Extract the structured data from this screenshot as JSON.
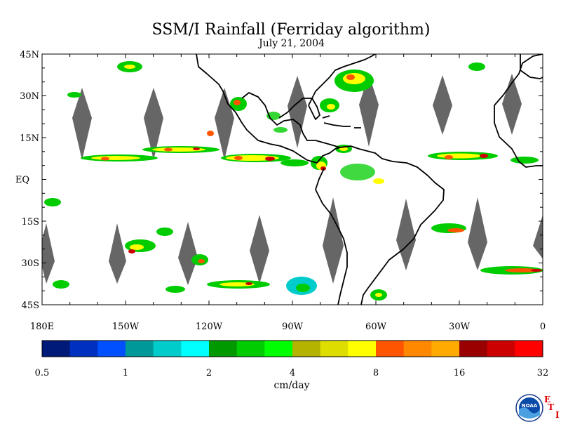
{
  "title": "SSM/I Rainfall (Ferriday algorithm)",
  "date": "July 21, 2004",
  "map": {
    "lon_range": [
      -180,
      0
    ],
    "lat_range": [
      -45,
      45
    ],
    "lat_labels": [
      "45N",
      "30N",
      "15N",
      "EQ",
      "15S",
      "30S",
      "45S"
    ],
    "lon_labels": [
      "180E",
      "150W",
      "120W",
      "90W",
      "60W",
      "30W",
      "0"
    ],
    "no_data_color": "#666666",
    "coastline_color": "#000000"
  },
  "colorbar": {
    "tick_labels": [
      "0.5",
      "1",
      "2",
      "4",
      "8",
      "16",
      "32"
    ],
    "units": "cm/day",
    "colors": [
      "#001a7a",
      "#0030c0",
      "#0050ff",
      "#009999",
      "#00cccc",
      "#00ffff",
      "#009900",
      "#00cc00",
      "#00ff00",
      "#b3b300",
      "#dddd00",
      "#ffff00",
      "#ff5500",
      "#ff8800",
      "#ffaa00",
      "#990000",
      "#cc0000",
      "#ff0000"
    ]
  },
  "logos": {
    "noaa_text": "NOAA",
    "ets_letters": [
      "E",
      "T",
      "I"
    ]
  }
}
